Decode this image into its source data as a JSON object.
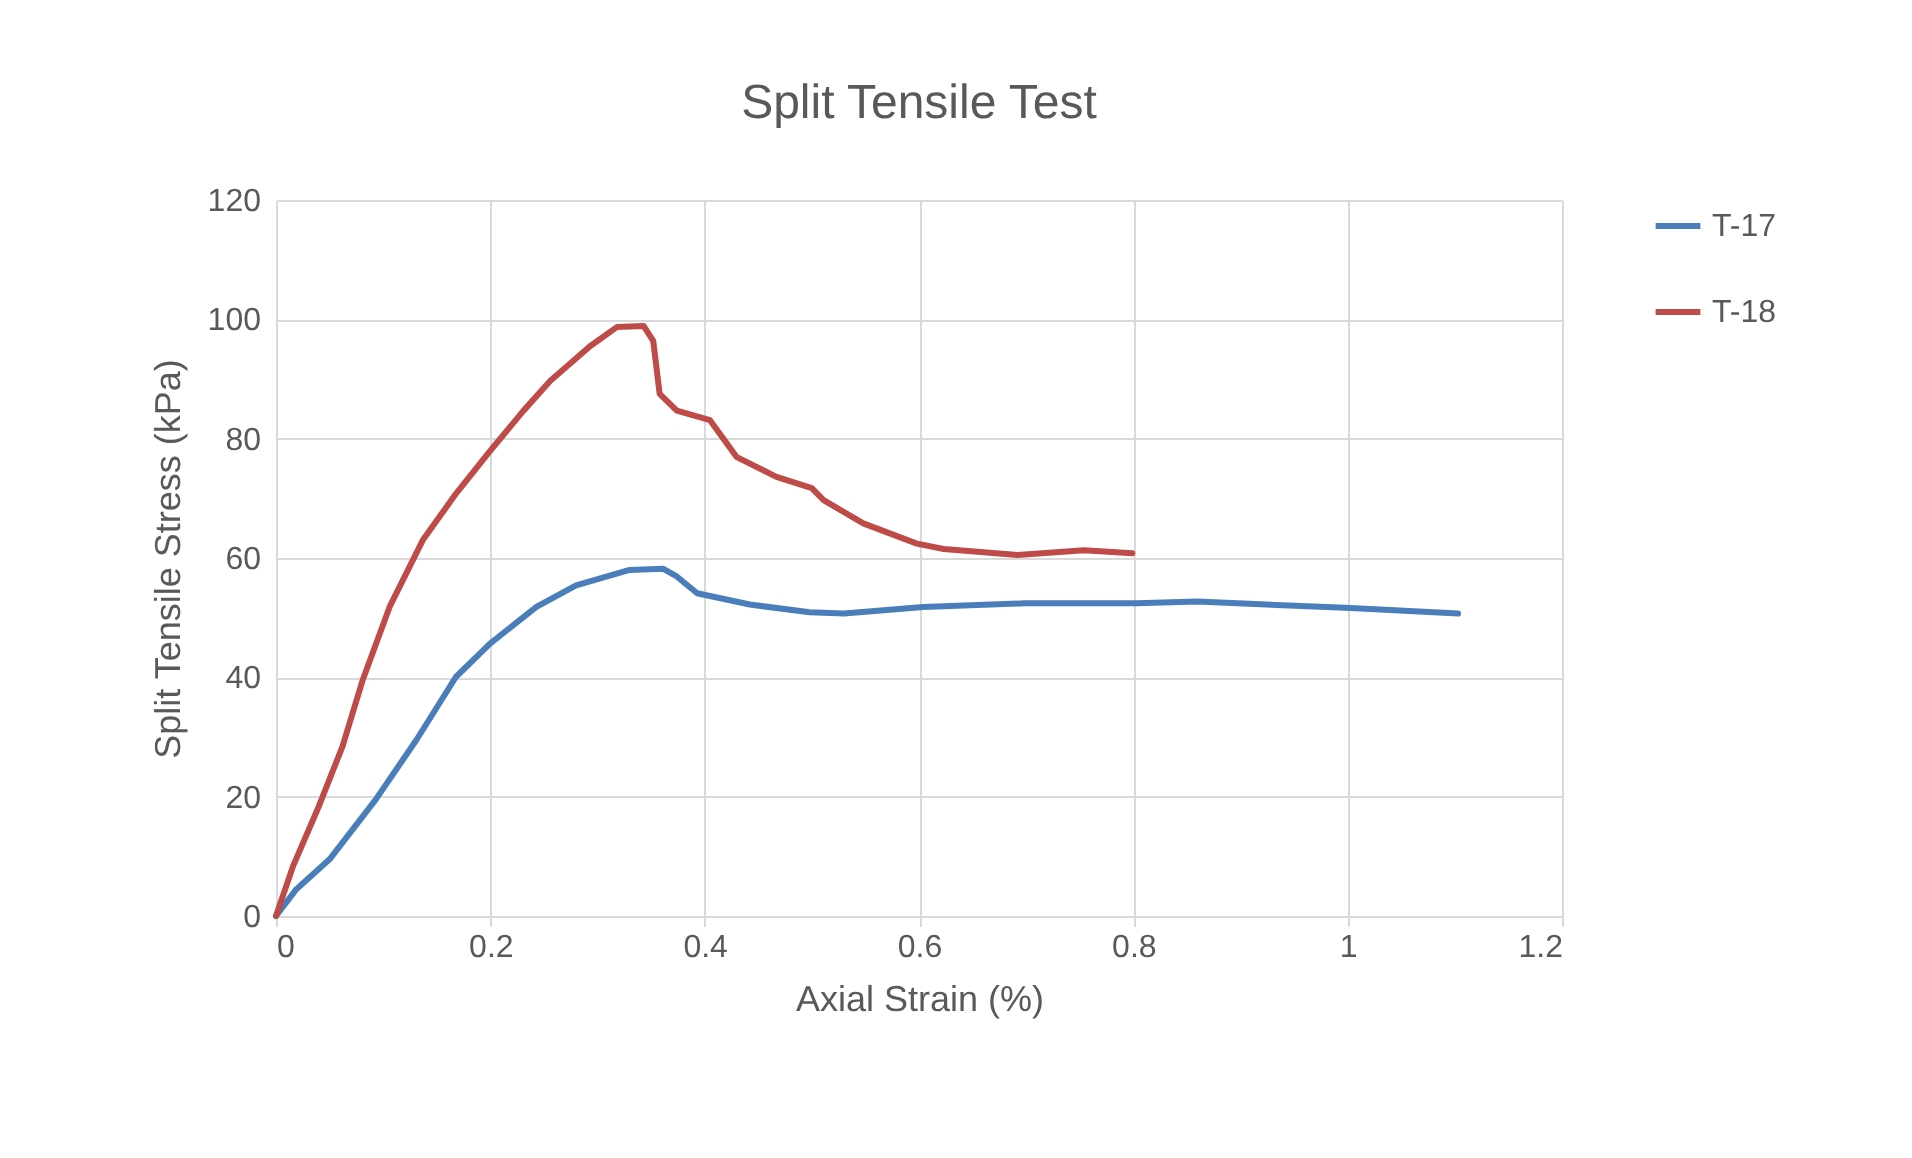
{
  "chart_data": {
    "type": "line",
    "title": "Split Tensile Test",
    "xlabel": "Axial Strain (%)",
    "ylabel": "Split Tensile Stress (kPa)",
    "xlim": [
      0,
      1.2
    ],
    "xticks": [
      0,
      0.2,
      0.4,
      0.6,
      0.8,
      1,
      1.2
    ],
    "ylim": [
      0,
      120
    ],
    "yticks": [
      0,
      20,
      40,
      60,
      80,
      100,
      120
    ],
    "grid": true,
    "legend": "right",
    "marker": "none",
    "line_style": "solid",
    "series": [
      {
        "name": "T-17",
        "color": "#4a7ebb",
        "x": [
          0,
          0.019,
          0.05,
          0.093,
          0.131,
          0.168,
          0.2,
          0.243,
          0.28,
          0.33,
          0.361,
          0.374,
          0.393,
          0.442,
          0.498,
          0.53,
          0.604,
          0.698,
          0.803,
          0.86,
          1.003,
          1.103
        ],
        "values": [
          0,
          4.5,
          9.5,
          19.5,
          29.5,
          40.1,
          45.7,
          51.8,
          55.4,
          58,
          58.2,
          56.9,
          54.1,
          52.2,
          50.9,
          50.7,
          51.8,
          52.4,
          52.4,
          52.7,
          51.6,
          50.7
        ]
      },
      {
        "name": "T-18",
        "color": "#be4b48",
        "x": [
          0,
          0.016,
          0.04,
          0.062,
          0.081,
          0.106,
          0.137,
          0.168,
          0.2,
          0.231,
          0.256,
          0.293,
          0.318,
          0.343,
          0.352,
          0.358,
          0.374,
          0.405,
          0.43,
          0.467,
          0.5,
          0.511,
          0.548,
          0.598,
          0.623,
          0.692,
          0.754,
          0.799
        ],
        "values": [
          0,
          8.4,
          18.4,
          28.4,
          39.6,
          51.8,
          63,
          70.8,
          78,
          84.7,
          89.7,
          95.5,
          98.7,
          98.9,
          96.4,
          87.5,
          84.7,
          83.1,
          76.9,
          73.6,
          71.7,
          69.7,
          65.8,
          62.4,
          61.5,
          60.5,
          61.3,
          60.8
        ]
      }
    ]
  }
}
